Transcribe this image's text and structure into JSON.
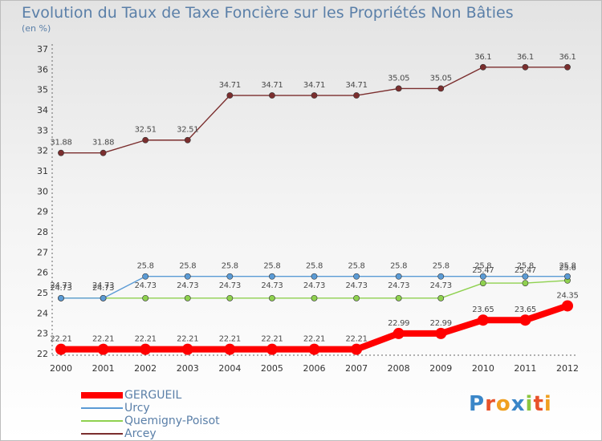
{
  "chart_data": {
    "type": "line",
    "title": "Evolution du Taux de Taxe Foncière sur les Propriétés Non Bâties",
    "subtitle": "(en %)",
    "x": [
      "2000",
      "2001",
      "2002",
      "2003",
      "2004",
      "2005",
      "2006",
      "2007",
      "2008",
      "2009",
      "2010",
      "2011",
      "2012"
    ],
    "ylim": [
      22,
      37
    ],
    "yticks": [
      "22",
      "23",
      "24",
      "25",
      "26",
      "27",
      "28",
      "29",
      "30",
      "31",
      "32",
      "33",
      "34",
      "35",
      "36",
      "37"
    ],
    "grid": false,
    "legend_placement": "bottom-left",
    "series": [
      {
        "name": "GERGUEIL",
        "color": "#ff0000",
        "values": [
          22.21,
          22.21,
          22.21,
          22.21,
          22.21,
          22.21,
          22.21,
          22.21,
          22.99,
          22.99,
          23.65,
          23.65,
          24.35
        ],
        "labels": [
          "22.21",
          "22.21",
          "22.21",
          "22.21",
          "22.21",
          "22.21",
          "22.21",
          "22.21",
          "22.99",
          "22.99",
          "23.65",
          "23.65",
          "24.35"
        ]
      },
      {
        "name": "Urcy",
        "color": "#5b9bd5",
        "values": [
          24.73,
          24.73,
          25.8,
          25.8,
          25.8,
          25.8,
          25.8,
          25.8,
          25.8,
          25.8,
          25.8,
          25.8,
          25.8
        ],
        "labels": [
          "24.73",
          "24.73",
          "25.8",
          "25.8",
          "25.8",
          "25.8",
          "25.8",
          "25.8",
          "25.8",
          "25.8",
          "25.8",
          "25.8",
          "25.8"
        ]
      },
      {
        "name": "Quemigny-Poisot",
        "color": "#8fd14f",
        "values": [
          24.73,
          24.73,
          24.73,
          24.73,
          24.73,
          24.73,
          24.73,
          24.73,
          24.73,
          24.73,
          25.47,
          25.47,
          25.6
        ],
        "labels": [
          "24.73",
          "24.73",
          "24.73",
          "24.73",
          "24.73",
          "24.73",
          "24.73",
          "24.73",
          "24.73",
          "24.73",
          "25.47",
          "25.47",
          "25.6"
        ]
      },
      {
        "name": "Arcey",
        "color": "#7b2e2e",
        "values": [
          31.88,
          31.88,
          32.51,
          32.51,
          34.71,
          34.71,
          34.71,
          34.71,
          35.05,
          35.05,
          36.1,
          36.1,
          36.1
        ],
        "labels": [
          "31.88",
          "31.88",
          "32.51",
          "32.51",
          "34.71",
          "34.71",
          "34.71",
          "34.71",
          "35.05",
          "35.05",
          "36.1",
          "36.1",
          "36.1"
        ]
      }
    ]
  },
  "logo": {
    "text": "Proxiti",
    "colors": [
      "#3a86c8",
      "#e8522a",
      "#f0a020",
      "#3a86c8",
      "#8cc63f",
      "#e8522a",
      "#f0a020"
    ]
  }
}
